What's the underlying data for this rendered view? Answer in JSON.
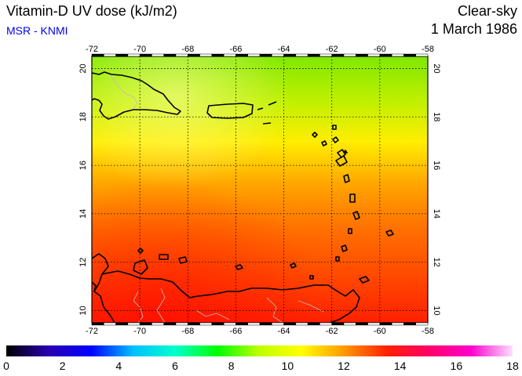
{
  "header": {
    "title": "Vitamin-D UV dose (kJ/m2)",
    "source": "MSR - KNMI",
    "condition": "Clear-sky",
    "date": "1 March 1986"
  },
  "map": {
    "lon_range": [
      -72,
      -58
    ],
    "lat_range": [
      9.5,
      20.5
    ],
    "lon_ticks": [
      "-72",
      "-70",
      "-68",
      "-66",
      "-64",
      "-62",
      "-60",
      "-58"
    ],
    "lat_ticks": [
      "10",
      "12",
      "14",
      "16",
      "18",
      "20"
    ],
    "grid": "dotted",
    "field": {
      "description_units": "kJ/m2",
      "north_value_approx": 8.5,
      "south_value_approx": 13.5
    }
  },
  "colorbar": {
    "min": 0,
    "max": 18,
    "tick_labels": [
      "0",
      "2",
      "4",
      "6",
      "8",
      "10",
      "12",
      "14",
      "16",
      "18"
    ],
    "stops": [
      "#000000",
      "#2a00b0",
      "#0000ff",
      "#00bfff",
      "#00ffcc",
      "#00ff00",
      "#bfff00",
      "#ffff00",
      "#ff9900",
      "#ff2200",
      "#ff0066",
      "#ff00cc",
      "#ffe0ff"
    ]
  }
}
